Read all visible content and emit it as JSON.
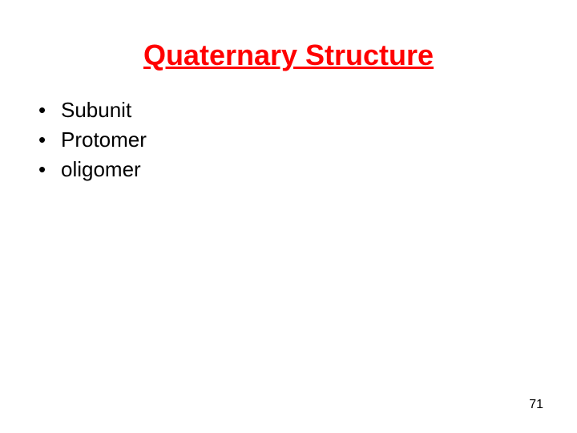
{
  "slide": {
    "title": "Quaternary Structure",
    "title_color": "#ff0000",
    "title_fontsize": 36,
    "title_fontweight": "bold",
    "title_underline": true,
    "background_color": "#ffffff",
    "bullets": [
      {
        "text": "Subunit"
      },
      {
        "text": "Protomer"
      },
      {
        "text": "oligomer"
      }
    ],
    "bullet_color": "#000000",
    "bullet_fontsize": 26,
    "page_number": "71",
    "page_number_fontsize": 16,
    "page_number_color": "#000000"
  }
}
